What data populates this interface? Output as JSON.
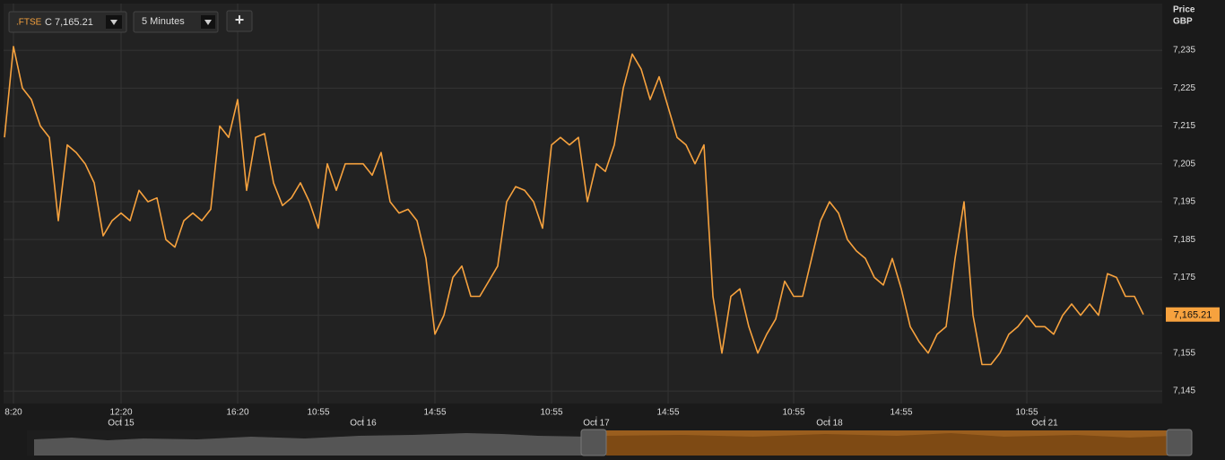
{
  "toolbar": {
    "symbol": ".FTSE",
    "quote": "C 7,165.21",
    "interval": "5 Minutes",
    "add": "+"
  },
  "chart_data": {
    "type": "line",
    "y_axis_label": "Price",
    "y_axis_unit": "GBP",
    "x": [
      0,
      1,
      2,
      3,
      4,
      5,
      6,
      7,
      8,
      9,
      10,
      11,
      12,
      13,
      14,
      15,
      16,
      17,
      18,
      19,
      20,
      21,
      22,
      23,
      24,
      25,
      26,
      27,
      28,
      29,
      30,
      31,
      32,
      33,
      34,
      35,
      36,
      37,
      38,
      39,
      40,
      41,
      42,
      43,
      44,
      45,
      46,
      47,
      48,
      49,
      50,
      51,
      52,
      53,
      54,
      55,
      56,
      57,
      58,
      59,
      60,
      61,
      62,
      63,
      64,
      65,
      66,
      67,
      68,
      69,
      70,
      71,
      72,
      73,
      74,
      75,
      76,
      77,
      78,
      79,
      80,
      81,
      82,
      83,
      84,
      85,
      86,
      87,
      88,
      89,
      90,
      91,
      92,
      93,
      94,
      95,
      96,
      97,
      98,
      99,
      100,
      101,
      102,
      103,
      104,
      105,
      106,
      107,
      108,
      109,
      110,
      111,
      112,
      113,
      114,
      115,
      116,
      117,
      118,
      119,
      120,
      121,
      122,
      123,
      124,
      125,
      126,
      127
    ],
    "series": [
      {
        "name": ".FTSE",
        "color": "#f7a23e",
        "values": [
          7212,
          7236,
          7225,
          7222,
          7215,
          7212,
          7190,
          7210,
          7208,
          7205,
          7200,
          7186,
          7190,
          7192,
          7190,
          7198,
          7195,
          7196,
          7185,
          7183,
          7190,
          7192,
          7190,
          7193,
          7215,
          7212,
          7222,
          7198,
          7212,
          7213,
          7200,
          7194,
          7196,
          7200,
          7195,
          7188,
          7205,
          7198,
          7205,
          7205,
          7205,
          7202,
          7208,
          7195,
          7192,
          7193,
          7190,
          7180,
          7160,
          7165,
          7175,
          7178,
          7170,
          7170,
          7174,
          7178,
          7195,
          7199,
          7198,
          7195,
          7188,
          7210,
          7212,
          7210,
          7212,
          7195,
          7205,
          7203,
          7210,
          7225,
          7234,
          7230,
          7222,
          7228,
          7220,
          7212,
          7210,
          7205,
          7210,
          7170,
          7155,
          7170,
          7172,
          7162,
          7155,
          7160,
          7164,
          7174,
          7170,
          7170,
          7180,
          7190,
          7195,
          7192,
          7185,
          7182,
          7180,
          7175,
          7173,
          7180,
          7172,
          7162,
          7158,
          7155,
          7160,
          7162,
          7180,
          7195,
          7165,
          7152,
          7152,
          7155,
          7160,
          7162,
          7165,
          7162,
          7162,
          7160,
          7165,
          7168,
          7165,
          7168,
          7165,
          7176,
          7175,
          7170,
          7170,
          7165.21
        ]
      }
    ],
    "last_price": {
      "value": 7165.21,
      "label": "7,165.21"
    },
    "xlim": [
      0,
      127
    ],
    "xticks": [
      {
        "value": 1,
        "label": "8:20"
      },
      {
        "value": 13,
        "label": "12:20"
      },
      {
        "value": 26,
        "label": "16:20"
      },
      {
        "value": 35,
        "label": "10:55"
      },
      {
        "value": 48,
        "label": "14:55"
      },
      {
        "value": 61,
        "label": "10:55"
      },
      {
        "value": 74,
        "label": "14:55"
      },
      {
        "value": 88,
        "label": "10:55"
      },
      {
        "value": 100,
        "label": "14:55"
      },
      {
        "value": 114,
        "label": "10:55"
      }
    ],
    "date_ticks": [
      {
        "value": 13,
        "label": "Oct 15"
      },
      {
        "value": 40,
        "label": "Oct 16"
      },
      {
        "value": 66,
        "label": "Oct 17"
      },
      {
        "value": 92,
        "label": "Oct 18"
      },
      {
        "value": 116,
        "label": "Oct 21"
      }
    ],
    "ylim": [
      7141.7,
      7247.1
    ],
    "yticks": [
      {
        "value": 7145,
        "label": "7,145"
      },
      {
        "value": 7155,
        "label": "7,155"
      },
      {
        "value": 7165,
        "label": "7,165"
      },
      {
        "value": 7175,
        "label": "7,175"
      },
      {
        "value": 7185,
        "label": "7,185"
      },
      {
        "value": 7195,
        "label": "7,195"
      },
      {
        "value": 7205,
        "label": "7,205"
      },
      {
        "value": 7215,
        "label": "7,215"
      },
      {
        "value": 7225,
        "label": "7,225"
      },
      {
        "value": 7235,
        "label": "7,235"
      }
    ],
    "grid": true
  }
}
